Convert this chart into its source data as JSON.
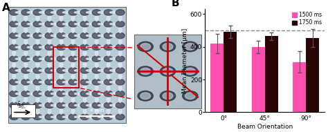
{
  "categories": [
    "0°",
    "45°",
    "90°"
  ],
  "values_1500": [
    420,
    400,
    308
  ],
  "values_1750": [
    490,
    465,
    455
  ],
  "errors_1500": [
    60,
    38,
    65
  ],
  "errors_1750": [
    38,
    22,
    55
  ],
  "color_1500": "#FF4FAF",
  "color_1750": "#2A0505",
  "dashed_line_y": 500,
  "ylim": [
    0,
    630
  ],
  "yticks": [
    0,
    200,
    400,
    600
  ],
  "ylabel": "Mean Diameter [μm]",
  "xlabel": "Beam Orientation",
  "legend_labels": [
    "1500 ms",
    "1750 ms"
  ],
  "bar_width": 0.32,
  "panel_A_bg": "#d0dce8",
  "panel_A_border": "#666666",
  "inset_bg": "#b8c4cc",
  "red_color": "#cc0000"
}
